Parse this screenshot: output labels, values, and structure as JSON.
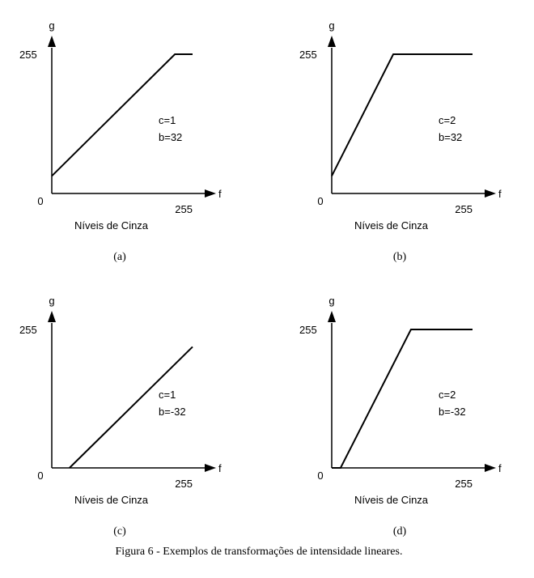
{
  "caption": "Figura 6 - Exemplos de transformações de intensidade lineares.",
  "chart_data": [
    {
      "type": "line",
      "panel_label": "(a)",
      "xlabel": "f",
      "ylabel": "g",
      "xlabel_below": "Níveis de Cinza",
      "ytick_label": "255",
      "origin_label": "0",
      "xtick_label": "255",
      "xlim": [
        0,
        255
      ],
      "ylim": [
        0,
        255
      ],
      "annotation": [
        "c=1",
        "b=32"
      ],
      "x": [
        0,
        223,
        255
      ],
      "y": [
        32,
        255,
        255
      ]
    },
    {
      "type": "line",
      "panel_label": "(b)",
      "xlabel": "f",
      "ylabel": "g",
      "xlabel_below": "Níveis de Cinza",
      "ytick_label": "255",
      "origin_label": "0",
      "xtick_label": "255",
      "xlim": [
        0,
        255
      ],
      "ylim": [
        0,
        255
      ],
      "annotation": [
        "c=2",
        "b=32"
      ],
      "x": [
        0,
        111.5,
        255
      ],
      "y": [
        32,
        255,
        255
      ]
    },
    {
      "type": "line",
      "panel_label": "(c)",
      "xlabel": "f",
      "ylabel": "g",
      "xlabel_below": "Níveis de Cinza",
      "ytick_label": "255",
      "origin_label": "0",
      "xtick_label": "255",
      "xlim": [
        0,
        255
      ],
      "ylim": [
        0,
        255
      ],
      "annotation": [
        "c=1",
        "b=-32"
      ],
      "x": [
        32,
        255
      ],
      "y": [
        0,
        223
      ]
    },
    {
      "type": "line",
      "panel_label": "(d)",
      "xlabel": "f",
      "ylabel": "g",
      "xlabel_below": "Níveis de Cinza",
      "ytick_label": "255",
      "origin_label": "0",
      "xtick_label": "255",
      "xlim": [
        0,
        255
      ],
      "ylim": [
        0,
        255
      ],
      "annotation": [
        "c=2",
        "b=-32"
      ],
      "x": [
        0,
        16,
        143.5,
        255
      ],
      "y": [
        0,
        0,
        255,
        255
      ]
    }
  ]
}
